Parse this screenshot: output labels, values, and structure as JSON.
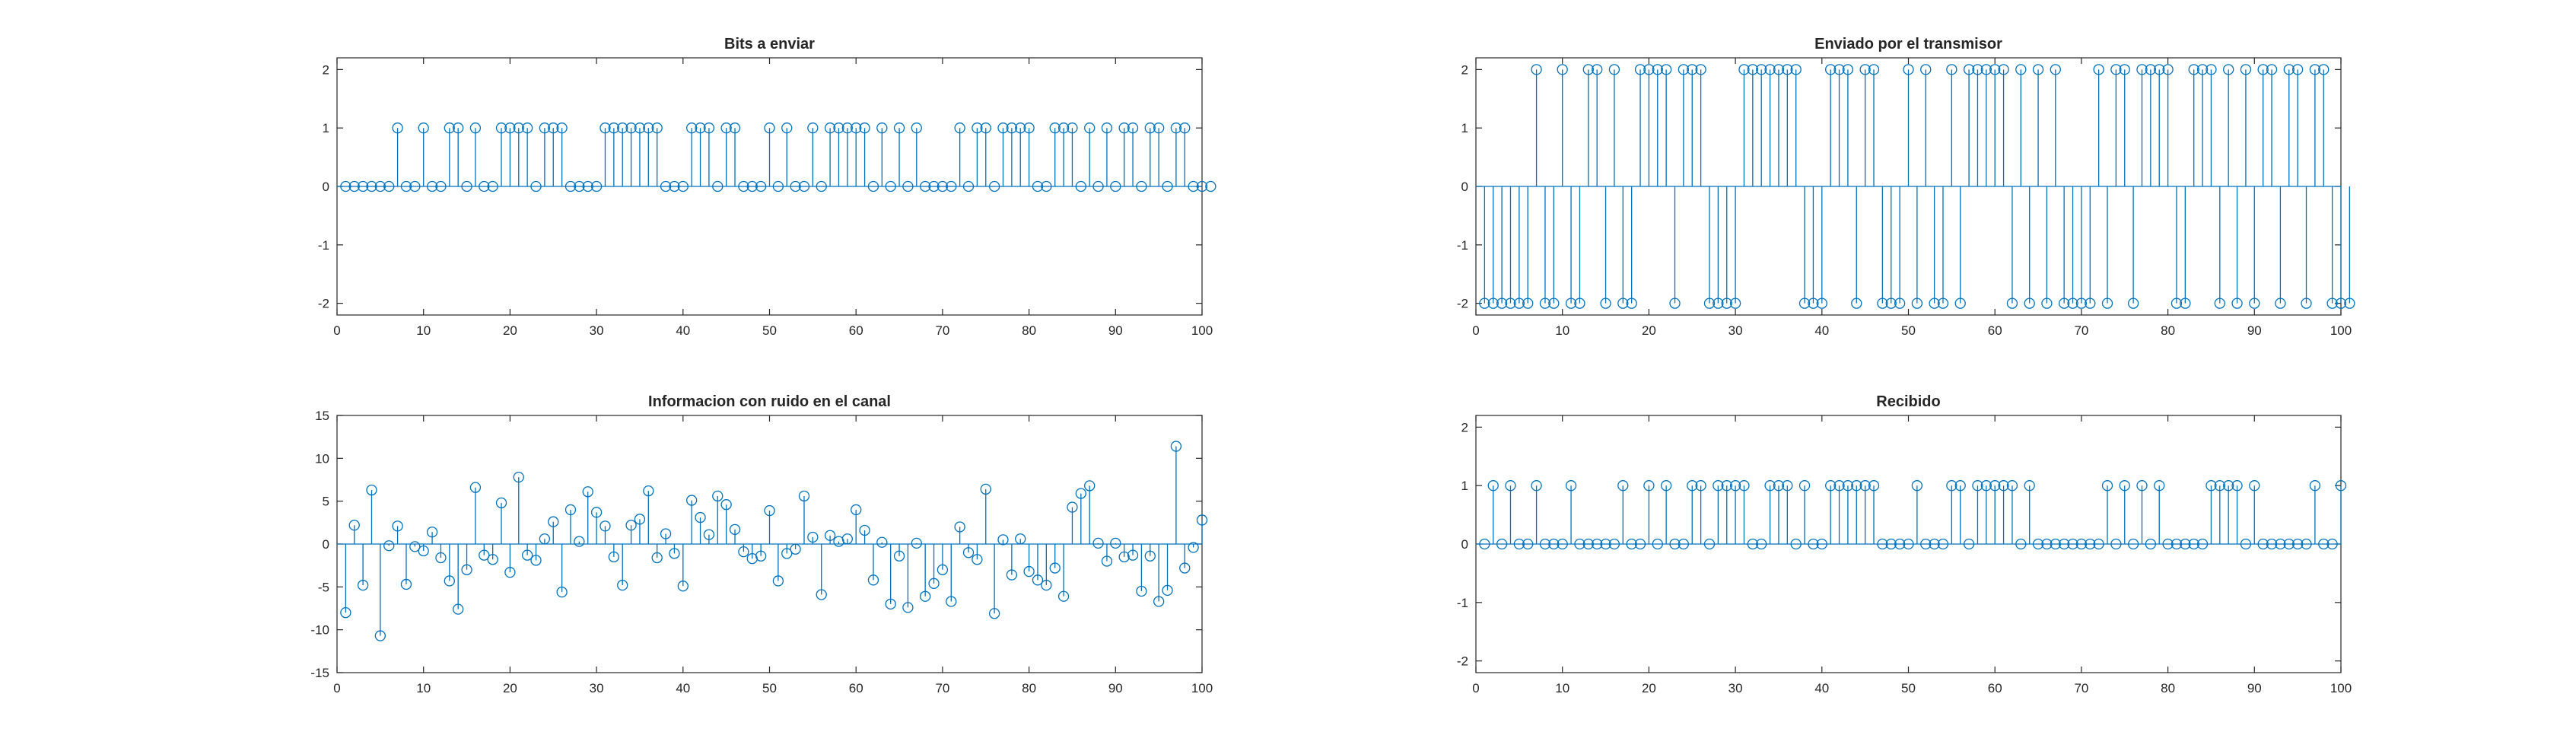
{
  "figure": {
    "background": "#ffffff",
    "series_color": "#0072bd"
  },
  "chart_data": [
    {
      "type": "stem",
      "title": "Bits a enviar",
      "xlim": [
        0,
        100
      ],
      "ylim": [
        -2.2,
        2.2
      ],
      "xticks": [
        0,
        10,
        20,
        30,
        40,
        50,
        60,
        70,
        80,
        90,
        100
      ],
      "yticks": [
        -2,
        -1,
        0,
        1,
        2
      ],
      "x_start": 1,
      "values": [
        0,
        0,
        0,
        0,
        0,
        0,
        1,
        0,
        0,
        1,
        0,
        0,
        1,
        1,
        0,
        1,
        0,
        0,
        1,
        1,
        1,
        1,
        0,
        1,
        1,
        1,
        0,
        0,
        0,
        0,
        1,
        1,
        1,
        1,
        1,
        1,
        1,
        0,
        0,
        0,
        1,
        1,
        1,
        0,
        1,
        1,
        0,
        0,
        0,
        1,
        0,
        1,
        0,
        0,
        1,
        0,
        1,
        1,
        1,
        1,
        1,
        0,
        1,
        0,
        1,
        0,
        1,
        0,
        0,
        0,
        0,
        1,
        0,
        1,
        1,
        0,
        1,
        1,
        1,
        1,
        0,
        0,
        1,
        1,
        1,
        0,
        1,
        0,
        1,
        0,
        1,
        1,
        0,
        1,
        1,
        0,
        1,
        1,
        0,
        0,
        0
      ]
    },
    {
      "type": "stem",
      "title": "Enviado por el transmisor",
      "xlim": [
        0,
        100
      ],
      "ylim": [
        -2.2,
        2.2
      ],
      "xticks": [
        0,
        10,
        20,
        30,
        40,
        50,
        60,
        70,
        80,
        90,
        100
      ],
      "yticks": [
        -2,
        -1,
        0,
        1,
        2
      ],
      "x_start": 1,
      "values": [
        -2,
        -2,
        -2,
        -2,
        -2,
        -2,
        2,
        -2,
        -2,
        2,
        -2,
        -2,
        2,
        2,
        -2,
        2,
        -2,
        -2,
        2,
        2,
        2,
        2,
        -2,
        2,
        2,
        2,
        -2,
        -2,
        -2,
        -2,
        2,
        2,
        2,
        2,
        2,
        2,
        2,
        -2,
        -2,
        -2,
        2,
        2,
        2,
        -2,
        2,
        2,
        -2,
        -2,
        -2,
        2,
        -2,
        2,
        -2,
        -2,
        2,
        -2,
        2,
        2,
        2,
        2,
        2,
        -2,
        2,
        -2,
        2,
        -2,
        2,
        -2,
        -2,
        -2,
        -2,
        2,
        -2,
        2,
        2,
        -2,
        2,
        2,
        2,
        2,
        -2,
        -2,
        2,
        2,
        2,
        -2,
        2,
        -2,
        2,
        -2,
        2,
        2,
        -2,
        2,
        2,
        -2,
        2,
        2,
        -2,
        -2,
        -2
      ]
    },
    {
      "type": "stem",
      "title": "Informacion con ruido en el canal",
      "xlim": [
        0,
        100
      ],
      "ylim": [
        -15,
        15
      ],
      "xticks": [
        0,
        10,
        20,
        30,
        40,
        50,
        60,
        70,
        80,
        90,
        100
      ],
      "yticks": [
        -15,
        -10,
        -5,
        0,
        5,
        10,
        15
      ],
      "x_start": 1,
      "values": [
        -8.0,
        2.2,
        -4.8,
        6.3,
        -10.7,
        -0.2,
        2.1,
        -4.7,
        -0.3,
        -0.8,
        1.4,
        -1.6,
        -4.3,
        -7.6,
        -3.0,
        6.6,
        -1.3,
        -1.8,
        4.8,
        -3.3,
        7.8,
        -1.3,
        -1.9,
        0.6,
        2.6,
        -5.6,
        4.0,
        0.3,
        6.1,
        3.7,
        2.1,
        -1.5,
        -4.8,
        2.2,
        2.9,
        6.2,
        -1.6,
        1.2,
        -1.1,
        -4.9,
        5.1,
        3.1,
        1.1,
        5.6,
        4.6,
        1.7,
        -0.9,
        -1.7,
        -1.4,
        3.9,
        -4.3,
        -1.1,
        -0.6,
        5.6,
        0.8,
        -5.9,
        1.0,
        0.3,
        0.6,
        4.0,
        1.6,
        -4.2,
        0.2,
        -7.0,
        -1.4,
        -7.4,
        0.1,
        -6.1,
        -4.6,
        -3.0,
        -6.7,
        2.0,
        -1.0,
        -1.8,
        6.4,
        -8.1,
        0.5,
        -3.6,
        0.6,
        -3.2,
        -4.2,
        -4.8,
        -2.8,
        -6.1,
        4.3,
        5.9,
        6.8,
        0.1,
        -2.0,
        0.1,
        -1.5,
        -1.3,
        -5.5,
        -1.4,
        -6.7,
        -5.4,
        11.4,
        -2.8,
        -0.4,
        2.8
      ]
    },
    {
      "type": "stem",
      "title": "Recibido",
      "xlim": [
        0,
        100
      ],
      "ylim": [
        -2.2,
        2.2
      ],
      "xticks": [
        0,
        10,
        20,
        30,
        40,
        50,
        60,
        70,
        80,
        90,
        100
      ],
      "yticks": [
        -2,
        -1,
        0,
        1,
        2
      ],
      "x_start": 1,
      "values": [
        0,
        1,
        0,
        1,
        0,
        0,
        1,
        0,
        0,
        0,
        1,
        0,
        0,
        0,
        0,
        0,
        1,
        0,
        0,
        1,
        0,
        1,
        0,
        0,
        1,
        1,
        0,
        1,
        1,
        1,
        1,
        0,
        0,
        1,
        1,
        1,
        0,
        1,
        0,
        0,
        1,
        1,
        1,
        1,
        1,
        1,
        0,
        0,
        0,
        0,
        1,
        0,
        0,
        0,
        1,
        1,
        0,
        1,
        1,
        1,
        1,
        1,
        0,
        1,
        0,
        0,
        0,
        0,
        0,
        0,
        0,
        0,
        1,
        0,
        1,
        0,
        1,
        0,
        1,
        0,
        0,
        0,
        0,
        0,
        1,
        1,
        1,
        1,
        0,
        1,
        0,
        0,
        0,
        0,
        0,
        0,
        1,
        0,
        0,
        1
      ]
    }
  ]
}
